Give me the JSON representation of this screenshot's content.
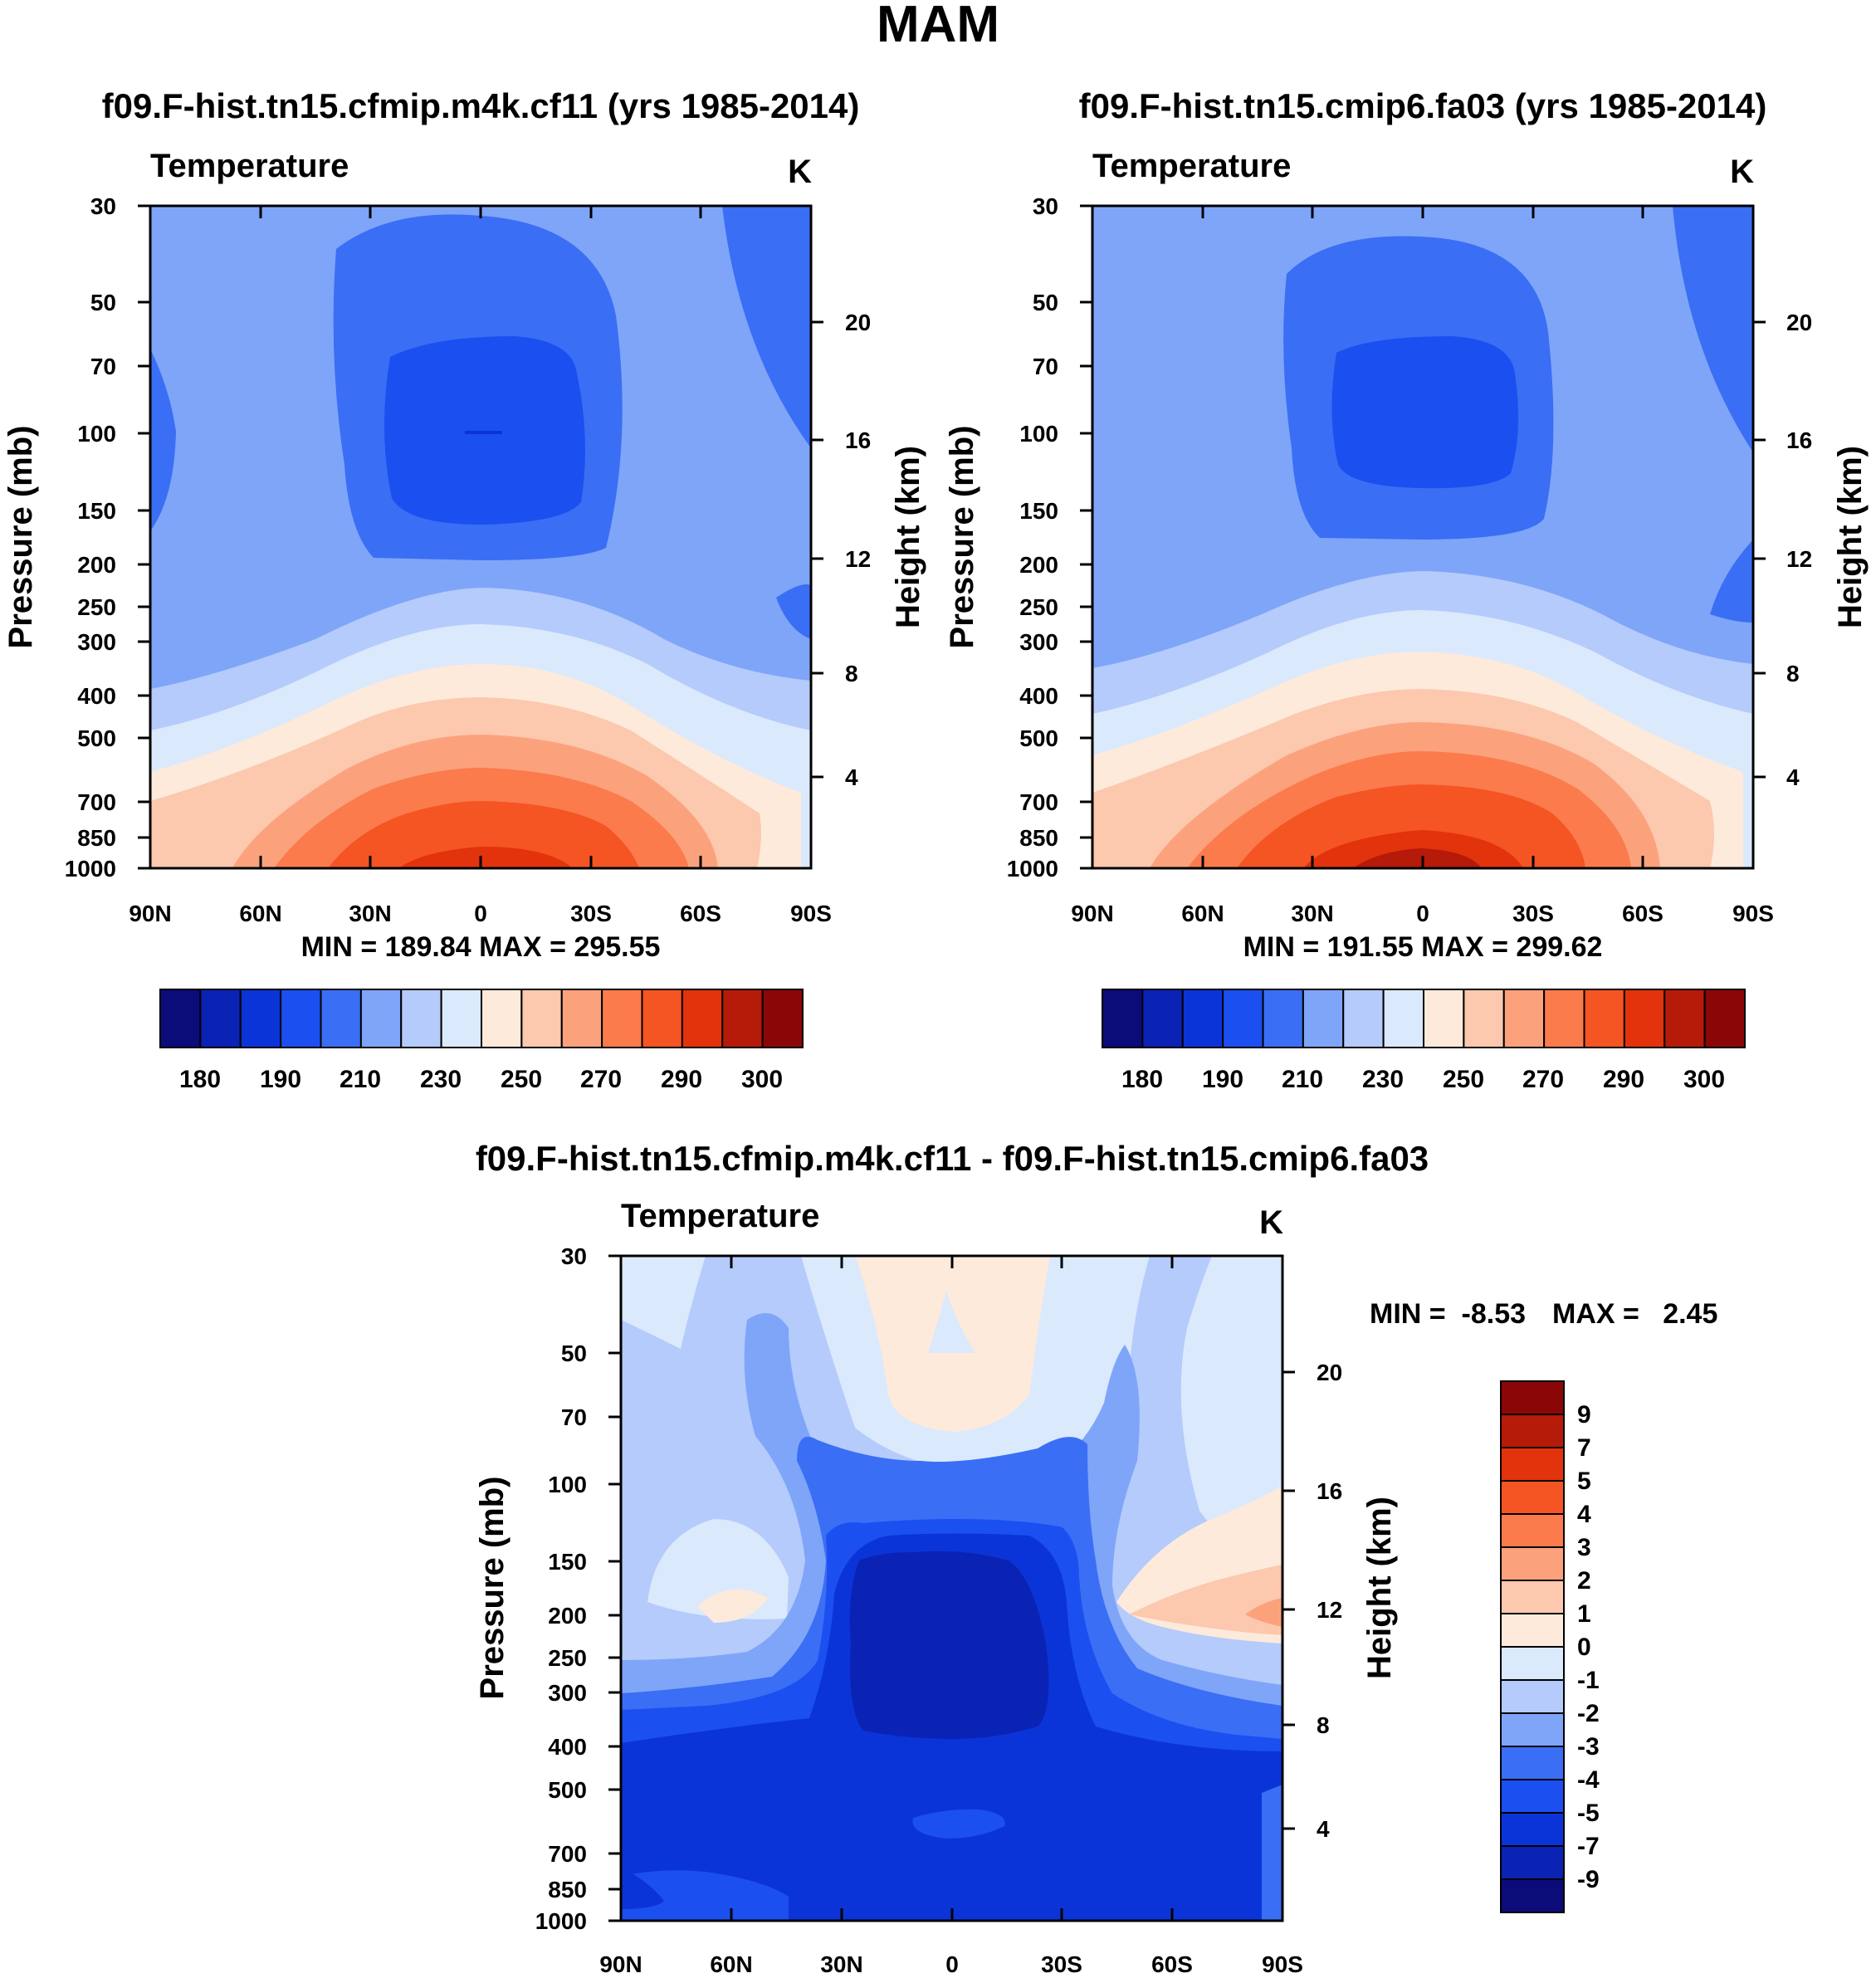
{
  "season_title": "MAM",
  "chart_data": [
    {
      "type": "contour",
      "title": "f09.F-hist.tn15.cfmip.m4k.cf11 (yrs 1985-2014)",
      "variable": "Temperature",
      "units": "K",
      "ylabel": "Pressure (mb)",
      "ylabel_right": "Height (km)",
      "x_ticklabels": [
        "90N",
        "60N",
        "30N",
        "0",
        "30S",
        "60S",
        "90S"
      ],
      "pressure_levels": [
        30,
        50,
        70,
        100,
        150,
        200,
        250,
        300,
        400,
        500,
        700,
        850,
        1000
      ],
      "height_levels": [
        20,
        16,
        12,
        8,
        4
      ],
      "stats": "MIN = 189.84  MAX = 295.55",
      "colorbar_labels": [
        "180",
        "190",
        "210",
        "230",
        "250",
        "270",
        "290",
        "300"
      ],
      "colorbar_colors": [
        "#0b0b7a",
        "#0b23b4",
        "#0b34d8",
        "#1b4ff0",
        "#3a6ef5",
        "#7fa5f8",
        "#b4cbfb",
        "#dbe9fd",
        "#fdeadb",
        "#fcc8ae",
        "#fba27d",
        "#fb7b4d",
        "#f55423",
        "#e2330c",
        "#b61a09",
        "#8b0707"
      ],
      "min": 189.84,
      "max": 295.55
    },
    {
      "type": "contour",
      "title": "f09.F-hist.tn15.cmip6.fa03 (yrs 1985-2014)",
      "variable": "Temperature",
      "units": "K",
      "ylabel": "Pressure (mb)",
      "ylabel_right": "Height (km)",
      "x_ticklabels": [
        "90N",
        "60N",
        "30N",
        "0",
        "30S",
        "60S",
        "90S"
      ],
      "pressure_levels": [
        30,
        50,
        70,
        100,
        150,
        200,
        250,
        300,
        400,
        500,
        700,
        850,
        1000
      ],
      "height_levels": [
        20,
        16,
        12,
        8,
        4
      ],
      "stats": "MIN = 191.55  MAX = 299.62",
      "colorbar_labels": [
        "180",
        "190",
        "210",
        "230",
        "250",
        "270",
        "290",
        "300"
      ],
      "colorbar_colors": [
        "#0b0b7a",
        "#0b23b4",
        "#0b34d8",
        "#1b4ff0",
        "#3a6ef5",
        "#7fa5f8",
        "#b4cbfb",
        "#dbe9fd",
        "#fdeadb",
        "#fcc8ae",
        "#fba27d",
        "#fb7b4d",
        "#f55423",
        "#e2330c",
        "#b61a09",
        "#8b0707"
      ],
      "min": 191.55,
      "max": 299.62
    },
    {
      "type": "contour",
      "title": "f09.F-hist.tn15.cfmip.m4k.cf11 - f09.F-hist.tn15.cmip6.fa03",
      "variable": "Temperature",
      "units": "K",
      "ylabel": "Pressure (mb)",
      "ylabel_right": "Height (km)",
      "x_ticklabels": [
        "90N",
        "60N",
        "30N",
        "0",
        "30S",
        "60S",
        "90S"
      ],
      "pressure_levels": [
        30,
        50,
        70,
        100,
        150,
        200,
        250,
        300,
        400,
        500,
        700,
        850,
        1000
      ],
      "height_levels": [
        20,
        16,
        12,
        8,
        4
      ],
      "stats_min": "MIN =  -8.53",
      "stats_max": "MAX =   2.45",
      "colorbar_labels": [
        "9",
        "7",
        "5",
        "4",
        "3",
        "2",
        "1",
        "0",
        "-1",
        "-2",
        "-3",
        "-4",
        "-5",
        "-7",
        "-9"
      ],
      "colorbar_colors": [
        "#8b0707",
        "#b61a09",
        "#e2330c",
        "#f55423",
        "#fb7b4d",
        "#fba27d",
        "#fcc8ae",
        "#fdeadb",
        "#dbe9fd",
        "#b4cbfb",
        "#7fa5f8",
        "#3a6ef5",
        "#1b4ff0",
        "#0b34d8",
        "#0b23b4",
        "#0b0b7a"
      ],
      "min": -8.53,
      "max": 2.45
    }
  ]
}
